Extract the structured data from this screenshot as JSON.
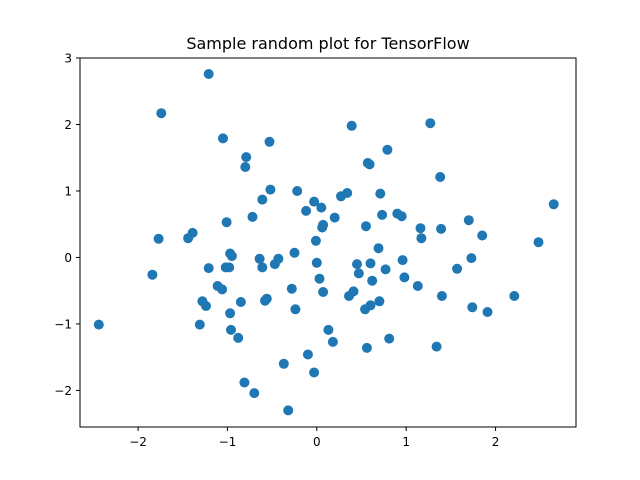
{
  "chart_data": {
    "type": "scatter",
    "title": "Sample random plot for TensorFlow",
    "xlabel": "",
    "ylabel": "",
    "xlim": [
      -2.65,
      2.9
    ],
    "ylim": [
      -2.55,
      3.0
    ],
    "xticks": [
      -2,
      -1,
      0,
      1,
      2
    ],
    "yticks": [
      -2,
      -1,
      0,
      1,
      2,
      3
    ],
    "xtick_labels": [
      "−2",
      "−1",
      "0",
      "1",
      "2"
    ],
    "ytick_labels": [
      "−2",
      "−1",
      "0",
      "1",
      "2",
      "3"
    ],
    "grid": false,
    "legend": "none",
    "marker_color": "#1f77b4",
    "points": [
      [
        -2.44,
        -1.01
      ],
      [
        -1.84,
        -0.26
      ],
      [
        -1.77,
        0.28
      ],
      [
        -1.74,
        2.17
      ],
      [
        -1.21,
        2.76
      ],
      [
        -1.44,
        0.29
      ],
      [
        -1.39,
        0.37
      ],
      [
        -1.31,
        -1.01
      ],
      [
        -1.28,
        -0.66
      ],
      [
        -1.24,
        -0.73
      ],
      [
        -1.21,
        -0.16
      ],
      [
        -1.11,
        -0.43
      ],
      [
        -1.06,
        -0.48
      ],
      [
        -1.05,
        1.79
      ],
      [
        -1.02,
        -0.15
      ],
      [
        -1.01,
        0.53
      ],
      [
        -0.98,
        -0.15
      ],
      [
        -0.97,
        0.06
      ],
      [
        -0.97,
        -0.84
      ],
      [
        -0.96,
        -1.09
      ],
      [
        -0.95,
        0.02
      ],
      [
        -0.88,
        -1.21
      ],
      [
        -0.85,
        -0.67
      ],
      [
        -0.81,
        -1.88
      ],
      [
        -0.8,
        1.36
      ],
      [
        -0.79,
        1.51
      ],
      [
        -0.72,
        0.61
      ],
      [
        -0.7,
        -2.04
      ],
      [
        -0.64,
        -0.02
      ],
      [
        -0.61,
        0.87
      ],
      [
        -0.61,
        -0.15
      ],
      [
        -0.58,
        -0.65
      ],
      [
        -0.56,
        -0.62
      ],
      [
        -0.53,
        1.74
      ],
      [
        -0.52,
        1.02
      ],
      [
        -0.47,
        -0.1
      ],
      [
        -0.43,
        -0.02
      ],
      [
        -0.37,
        -1.6
      ],
      [
        -0.32,
        -2.3
      ],
      [
        -0.28,
        -0.47
      ],
      [
        -0.25,
        0.07
      ],
      [
        -0.24,
        -0.78
      ],
      [
        -0.22,
        1.0
      ],
      [
        -0.12,
        0.7
      ],
      [
        -0.1,
        -1.46
      ],
      [
        -0.03,
        0.84
      ],
      [
        -0.03,
        -1.73
      ],
      [
        -0.01,
        0.25
      ],
      [
        0.0,
        -0.08
      ],
      [
        0.03,
        -0.32
      ],
      [
        0.05,
        0.75
      ],
      [
        0.06,
        0.45
      ],
      [
        0.07,
        0.49
      ],
      [
        0.07,
        -0.52
      ],
      [
        0.13,
        -1.09
      ],
      [
        0.18,
        -1.27
      ],
      [
        0.2,
        0.6
      ],
      [
        0.27,
        0.92
      ],
      [
        0.34,
        0.97
      ],
      [
        0.36,
        -0.58
      ],
      [
        0.39,
        1.98
      ],
      [
        0.41,
        -0.51
      ],
      [
        0.45,
        -0.1
      ],
      [
        0.47,
        -0.24
      ],
      [
        0.54,
        -0.78
      ],
      [
        0.55,
        0.47
      ],
      [
        0.56,
        -1.36
      ],
      [
        0.57,
        1.42
      ],
      [
        0.59,
        1.4
      ],
      [
        0.6,
        -0.09
      ],
      [
        0.6,
        -0.72
      ],
      [
        0.62,
        -0.35
      ],
      [
        0.69,
        0.14
      ],
      [
        0.7,
        -0.66
      ],
      [
        0.71,
        0.96
      ],
      [
        0.73,
        0.64
      ],
      [
        0.77,
        -0.18
      ],
      [
        0.79,
        1.62
      ],
      [
        0.81,
        -1.22
      ],
      [
        0.9,
        0.66
      ],
      [
        0.95,
        0.62
      ],
      [
        0.96,
        -0.04
      ],
      [
        0.98,
        -0.3
      ],
      [
        1.13,
        -0.43
      ],
      [
        1.16,
        0.44
      ],
      [
        1.17,
        0.29
      ],
      [
        1.27,
        2.02
      ],
      [
        1.34,
        -1.34
      ],
      [
        1.38,
        1.21
      ],
      [
        1.39,
        0.43
      ],
      [
        1.4,
        -0.58
      ],
      [
        1.57,
        -0.17
      ],
      [
        1.7,
        0.56
      ],
      [
        1.73,
        -0.01
      ],
      [
        1.74,
        -0.75
      ],
      [
        1.85,
        0.33
      ],
      [
        1.91,
        -0.82
      ],
      [
        2.21,
        -0.58
      ],
      [
        2.48,
        0.23
      ],
      [
        2.65,
        0.8
      ]
    ]
  }
}
